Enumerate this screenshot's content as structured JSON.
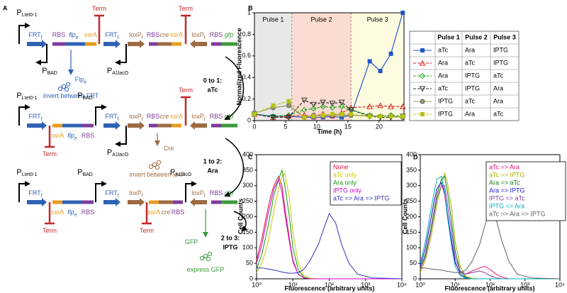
{
  "panel_labels": [
    "A",
    "B",
    "C",
    "D"
  ],
  "diagram": {
    "rows": [
      {
        "items": [
          {
            "text": "P",
            "sub": "Ltet0-1"
          },
          {
            "text": "FRT",
            "sub": "f"
          },
          {
            "text": "RBS"
          },
          {
            "text": "flp",
            "sub": "e"
          },
          {
            "text": "ssrA"
          },
          {
            "text": "Term"
          },
          {
            "text": "FRT",
            "sub": "f"
          },
          {
            "text": "loxP",
            "sub": "f"
          },
          {
            "text": "RBS"
          },
          {
            "text": "cre"
          },
          {
            "text": "ssrA"
          },
          {
            "text": "Term"
          },
          {
            "text": "loxP",
            "sub": "f"
          },
          {
            "text": "RBS"
          },
          {
            "text": "gfp"
          },
          {
            "text": "P",
            "sub": "BAD"
          },
          {
            "text": "P",
            "sub": "A1lacO"
          },
          {
            "text": "Flp",
            "sub": "e"
          },
          {
            "text": "invert between FRT"
          }
        ]
      },
      {
        "items": [
          {
            "text": "P",
            "sub": "Ltet0-1"
          },
          {
            "text": "P",
            "sub": "BAD"
          },
          {
            "text": "FRT",
            "sub": "f"
          },
          {
            "text": "ssrA"
          },
          {
            "text": "flp",
            "sub": "e"
          },
          {
            "text": "RBS"
          },
          {
            "text": "Term"
          },
          {
            "text": "FRT",
            "sub": "f"
          },
          {
            "text": "loxP",
            "sub": "f"
          },
          {
            "text": "RBS"
          },
          {
            "text": "cre"
          },
          {
            "text": "ssrA"
          },
          {
            "text": "Term"
          },
          {
            "text": "loxP",
            "sub": "f"
          },
          {
            "text": "RBS"
          },
          {
            "text": "gfp"
          },
          {
            "text": "P",
            "sub": "A1lacO"
          },
          {
            "text": "Cre"
          },
          {
            "text": "invert between loxP"
          }
        ]
      },
      {
        "items": [
          {
            "text": "P",
            "sub": "Ltet0-1"
          },
          {
            "text": "P",
            "sub": "BAD"
          },
          {
            "text": "P",
            "sub": "A1lacO"
          },
          {
            "text": "FRT",
            "sub": "f"
          },
          {
            "text": "ssrA"
          },
          {
            "text": "flp",
            "sub": "e"
          },
          {
            "text": "RBS"
          },
          {
            "text": "Term"
          },
          {
            "text": "FRT",
            "sub": "f"
          },
          {
            "text": "loxP",
            "sub": "f"
          },
          {
            "text": "ssrA"
          },
          {
            "text": "cre"
          },
          {
            "text": "RBS"
          },
          {
            "text": "Term"
          },
          {
            "text": "loxP",
            "sub": "f"
          },
          {
            "text": "RBS"
          },
          {
            "text": "gfp"
          },
          {
            "text": "GFP"
          },
          {
            "text": "express GFP"
          }
        ]
      }
    ],
    "transitions": [
      {
        "step": "0 to 1:",
        "inducer": "aTc"
      },
      {
        "step": "1 to 2:",
        "inducer": "Ara"
      },
      {
        "step": "2 to 3:",
        "inducer": "IPTG"
      }
    ]
  },
  "chart_data": [
    {
      "type": "line",
      "x_label": "Time (h)",
      "y_label": "Normalized Fluorescence",
      "xlim": [
        0,
        24
      ],
      "ylim": [
        0,
        1
      ],
      "xticks": [
        0,
        5,
        10,
        15,
        20
      ],
      "yticks": [
        0,
        0.2,
        0.4,
        0.6,
        0.8,
        1
      ],
      "pulses": [
        {
          "name": "Pulse 1",
          "start": 0,
          "end": 6,
          "color": "#e8e8e8"
        },
        {
          "name": "Pulse 2",
          "start": 6,
          "end": 15.5,
          "color": "#fbdcd2"
        },
        {
          "name": "Pulse 3",
          "start": 15.5,
          "end": 24,
          "color": "#fdfbe0"
        }
      ],
      "legend_headers": [
        "Pulse 1",
        "Pulse 2",
        "Pulse 3"
      ],
      "x": [
        0,
        3,
        5.5,
        8,
        9.5,
        11,
        12.5,
        14,
        15.5,
        18.5,
        20.2,
        21.9,
        23.8
      ],
      "series": [
        {
          "pulses": [
            "aTc",
            "Ara",
            "IPTG"
          ],
          "color": "#2255cc",
          "marker": "square",
          "dashed": false,
          "values": [
            0.06,
            0.04,
            0.04,
            0.03,
            0.03,
            0.03,
            0.04,
            0.03,
            0.05,
            0.55,
            0.46,
            0.62,
            1.0
          ]
        },
        {
          "pulses": [
            "Ara",
            "aTc",
            "IPTG"
          ],
          "color": "#dd2222",
          "marker": "triangle",
          "dashed": true,
          "values": [
            0.06,
            0.03,
            0.04,
            0.05,
            0.04,
            0.06,
            0.05,
            0.07,
            0.12,
            0.13,
            0.14,
            0.13,
            0.13
          ]
        },
        {
          "pulses": [
            "Ara",
            "IPTG",
            "aTc"
          ],
          "color": "#22aa22",
          "marker": "diamond",
          "dashed": true,
          "values": [
            0.06,
            0.04,
            0.05,
            0.1,
            0.11,
            0.13,
            0.12,
            0.13,
            0.1,
            0.05,
            0.04,
            0.05,
            0.04
          ]
        },
        {
          "pulses": [
            "aTc",
            "IPTG",
            "Ara"
          ],
          "color": "#333333",
          "marker": "triangle-down",
          "dashed": true,
          "values": [
            0.06,
            0.03,
            0.03,
            0.19,
            0.15,
            0.17,
            0.16,
            0.17,
            0.1,
            0.04,
            0.03,
            0.03,
            0.04
          ]
        },
        {
          "pulses": [
            "IPTG",
            "aTc",
            "Ara"
          ],
          "color": "#999966",
          "marker": "circle",
          "dashed": false,
          "values": [
            0.07,
            0.12,
            0.14,
            0.03,
            0.05,
            0.04,
            0.05,
            0.05,
            0.05,
            0.04,
            0.04,
            0.04,
            0.03
          ]
        },
        {
          "pulses": [
            "IPTG",
            "Ara",
            "aTc"
          ],
          "color": "#b5c416",
          "marker": "square",
          "dashed": true,
          "values": [
            0.06,
            0.14,
            0.18,
            0.03,
            0.04,
            0.05,
            0.06,
            0.06,
            0.06,
            0.04,
            0.04,
            0.04,
            0.04
          ]
        }
      ]
    },
    {
      "type": "line",
      "xscale": "log",
      "x_label": "Fluorescence (arbitrary units)",
      "y_label": "Cell Counts",
      "xlim": [
        1,
        10000
      ],
      "ylim": [
        0,
        400
      ],
      "xticks": [
        {
          "value": 1,
          "label": "10⁰"
        },
        {
          "value": 10,
          "label": "10¹"
        },
        {
          "value": 100,
          "label": "10²"
        },
        {
          "value": 1000,
          "label": "10³"
        },
        {
          "value": 10000,
          "label": "10⁴"
        }
      ],
      "yticks": [
        0,
        50,
        100,
        150,
        200,
        250,
        300,
        350,
        400
      ],
      "x": [
        1,
        1.4,
        2,
        2.5,
        3,
        4,
        5,
        6,
        8,
        10,
        14,
        20,
        30,
        50,
        70,
        100,
        150,
        220,
        350,
        600,
        1500,
        10000
      ],
      "series": [
        {
          "name": "None",
          "color": "#e0103c",
          "values": [
            60,
            130,
            220,
            270,
            300,
            330,
            300,
            230,
            130,
            60,
            15,
            3,
            0,
            0,
            0,
            0,
            0,
            0,
            0,
            0,
            0,
            0
          ]
        },
        {
          "name": "aTc only",
          "color": "#c8c800",
          "values": [
            20,
            50,
            110,
            170,
            220,
            290,
            330,
            340,
            260,
            150,
            50,
            10,
            2,
            0,
            0,
            0,
            0,
            0,
            0,
            0,
            0,
            0
          ]
        },
        {
          "name": "Ara only",
          "color": "#119911",
          "values": [
            30,
            80,
            160,
            220,
            270,
            320,
            350,
            300,
            200,
            100,
            30,
            5,
            0,
            0,
            0,
            0,
            0,
            0,
            0,
            0,
            0,
            0
          ]
        },
        {
          "name": "IPTG only",
          "color": "#cc00cc",
          "values": [
            50,
            110,
            200,
            250,
            290,
            320,
            280,
            210,
            120,
            55,
            15,
            3,
            0,
            0,
            0,
            0,
            0,
            0,
            0,
            0,
            0,
            0
          ]
        },
        {
          "name": "aTc => Ara => IPTG",
          "color": "#3030c0",
          "values": [
            35,
            35,
            32,
            30,
            28,
            25,
            22,
            20,
            18,
            18,
            20,
            30,
            60,
            110,
            160,
            210,
            180,
            110,
            50,
            15,
            3,
            0
          ]
        }
      ]
    },
    {
      "type": "line",
      "xscale": "log",
      "x_label": "Fluorescence (arbitrary units)",
      "y_label": "Cell Counts",
      "xlim": [
        1,
        10000
      ],
      "ylim": [
        0,
        400
      ],
      "xticks": [
        {
          "value": 1,
          "label": "10⁰"
        },
        {
          "value": 10,
          "label": "10¹"
        },
        {
          "value": 100,
          "label": "10²"
        },
        {
          "value": 1000,
          "label": "10³"
        },
        {
          "value": 10000,
          "label": "10⁴"
        }
      ],
      "yticks": [
        0,
        50,
        100,
        150,
        200,
        250,
        300,
        350,
        400
      ],
      "x": [
        1,
        1.4,
        2,
        2.5,
        3,
        4,
        5,
        6,
        8,
        10,
        14,
        20,
        30,
        50,
        70,
        100,
        150,
        220,
        350,
        600,
        1500,
        10000
      ],
      "series": [
        {
          "name": "aTc => Ara",
          "color": "#e0107a",
          "values": [
            40,
            100,
            190,
            250,
            290,
            310,
            270,
            200,
            110,
            50,
            20,
            15,
            25,
            35,
            40,
            30,
            15,
            5,
            0,
            0,
            0,
            0
          ]
        },
        {
          "name": "aTc => IPTG",
          "color": "#b0b000",
          "values": [
            20,
            60,
            130,
            190,
            240,
            300,
            340,
            310,
            220,
            120,
            40,
            8,
            2,
            0,
            0,
            0,
            0,
            0,
            0,
            0,
            0,
            0
          ]
        },
        {
          "name": "Ara => aTc",
          "color": "#108010",
          "values": [
            30,
            80,
            160,
            220,
            270,
            320,
            330,
            280,
            180,
            90,
            25,
            5,
            0,
            0,
            0,
            0,
            0,
            0,
            0,
            0,
            0,
            0
          ]
        },
        {
          "name": "Ara => IPTG",
          "color": "#2020d0",
          "values": [
            40,
            100,
            190,
            250,
            290,
            310,
            280,
            210,
            120,
            55,
            15,
            3,
            0,
            0,
            0,
            0,
            0,
            0,
            0,
            0,
            0,
            0
          ]
        },
        {
          "name": "IPTG => aTc",
          "color": "#8040a0",
          "values": [
            30,
            70,
            150,
            210,
            260,
            300,
            300,
            240,
            150,
            70,
            25,
            15,
            20,
            25,
            20,
            10,
            3,
            0,
            0,
            0,
            0,
            0
          ]
        },
        {
          "name": "IPTG => Ara",
          "color": "#00b0c0",
          "values": [
            50,
            120,
            220,
            280,
            320,
            330,
            280,
            200,
            100,
            40,
            10,
            2,
            0,
            0,
            0,
            0,
            0,
            0,
            0,
            0,
            0,
            0
          ]
        },
        {
          "name": "aTc => Ara => IPTG",
          "color": "#606060",
          "values": [
            35,
            35,
            32,
            30,
            30,
            28,
            26,
            24,
            22,
            20,
            20,
            28,
            55,
            110,
            170,
            220,
            190,
            120,
            55,
            15,
            3,
            0
          ]
        }
      ]
    }
  ]
}
